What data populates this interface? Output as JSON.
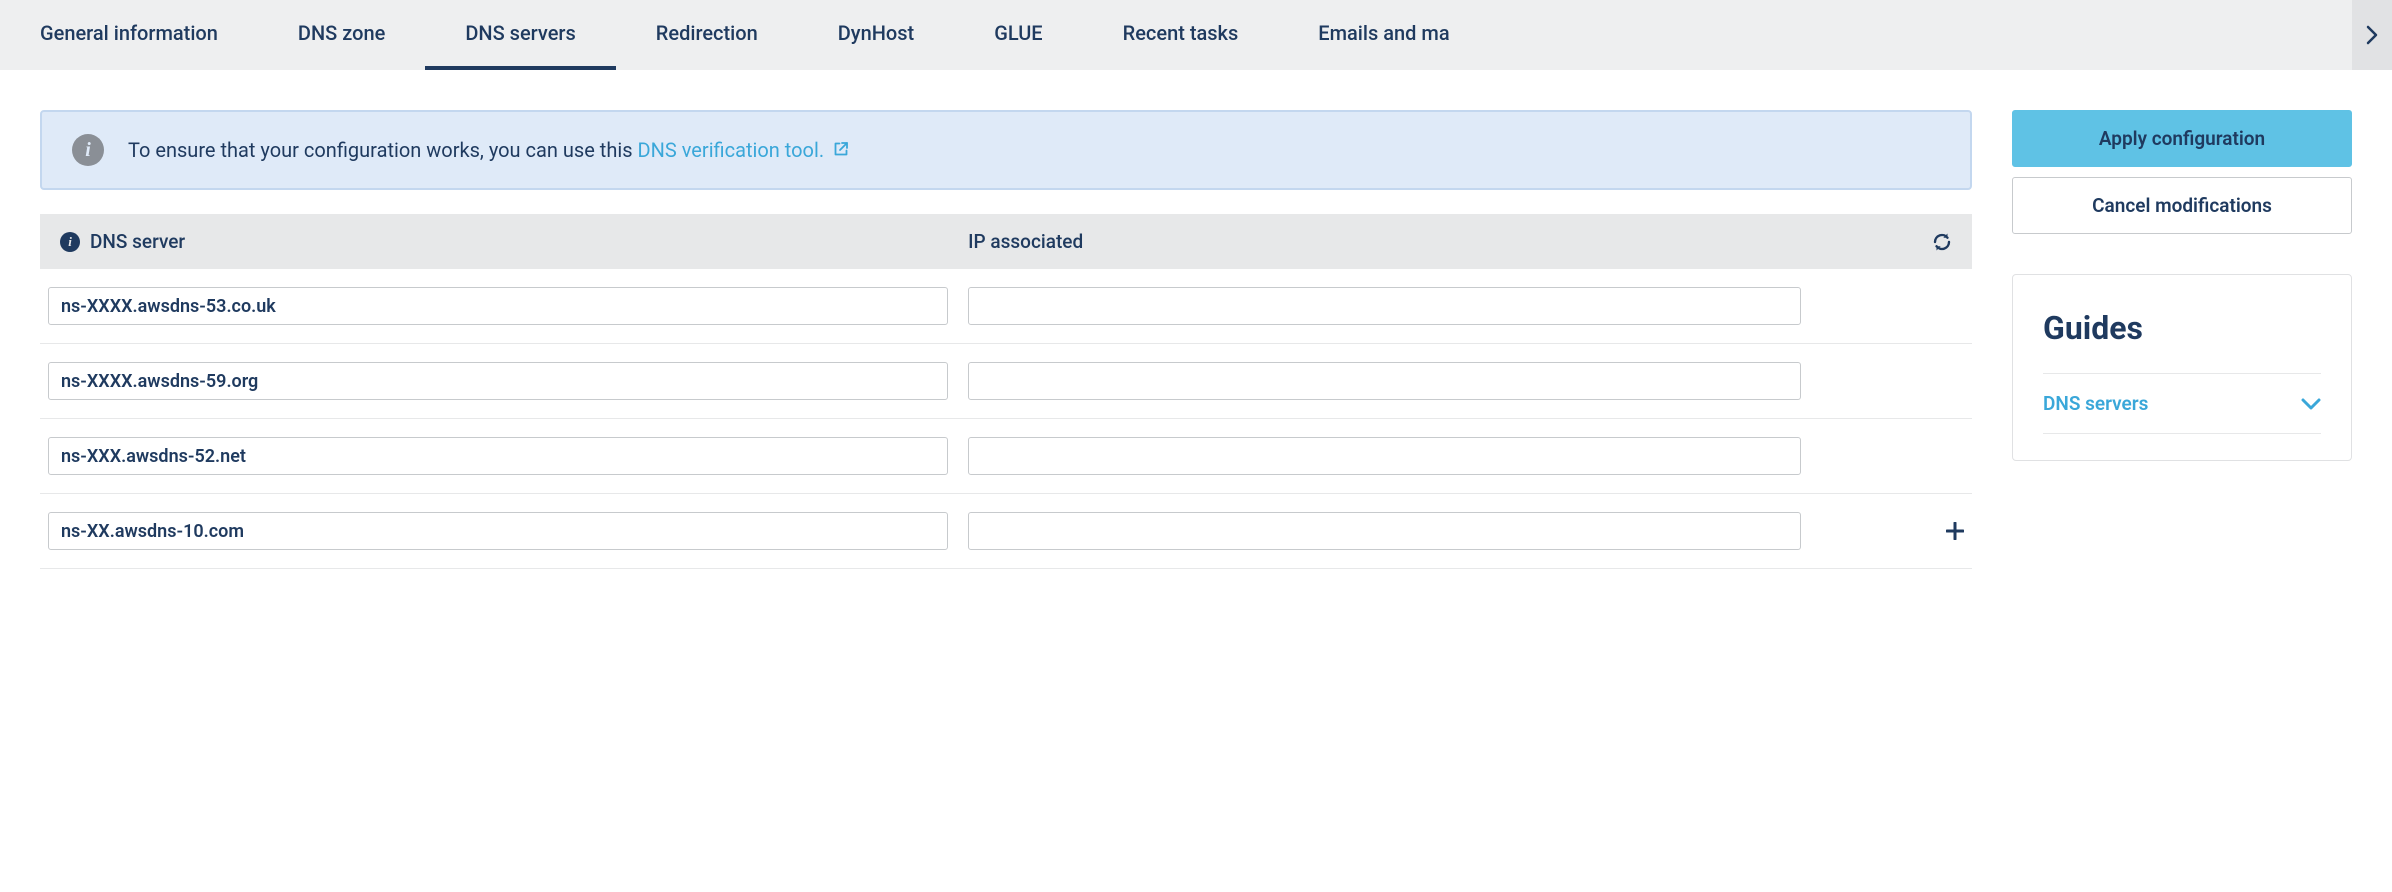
{
  "tabs": [
    {
      "label": "General information",
      "active": false
    },
    {
      "label": "DNS zone",
      "active": false
    },
    {
      "label": "DNS servers",
      "active": true
    },
    {
      "label": "Redirection",
      "active": false
    },
    {
      "label": "DynHost",
      "active": false
    },
    {
      "label": "GLUE",
      "active": false
    },
    {
      "label": "Recent tasks",
      "active": false
    },
    {
      "label": "Emails and ma",
      "active": false
    }
  ],
  "banner": {
    "prefix": "To ensure that your configuration works, you can use this ",
    "link_text": "DNS verification tool."
  },
  "table": {
    "col_dns": "DNS server",
    "col_ip": "IP associated"
  },
  "rows": [
    {
      "dns": "ns-XXXX.awsdns-53.co.uk",
      "ip": "",
      "showAdd": false
    },
    {
      "dns": "ns-XXXX.awsdns-59.org",
      "ip": "",
      "showAdd": false
    },
    {
      "dns": "ns-XXX.awsdns-52.net",
      "ip": "",
      "showAdd": false
    },
    {
      "dns": "ns-XX.awsdns-10.com",
      "ip": "",
      "showAdd": true
    }
  ],
  "sidebar": {
    "apply_label": "Apply configuration",
    "cancel_label": "Cancel modifications",
    "guides_title": "Guides",
    "guide_item": "DNS servers"
  },
  "colors": {
    "tab_bg": "#eeeff0",
    "tab_active_border": "#1f3a5f",
    "banner_bg": "#dfeaf8",
    "banner_border": "#c3d7ef",
    "link": "#3aa7d9",
    "btn_primary_bg": "#5fc2e5",
    "text": "#1f3a5f",
    "table_header_bg": "#e7e8e9",
    "info_icon_bg": "#8a8f96"
  }
}
